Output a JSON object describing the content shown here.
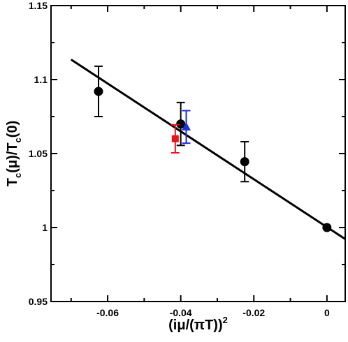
{
  "chart_data": {
    "type": "scatter",
    "xlabel": "(iμ/(πT))",
    "xlabel_sup": "2",
    "ylabel_parts": [
      "T",
      "c",
      "(μ)/T",
      "c",
      "(0)"
    ],
    "xlim": [
      -0.0755,
      0.005
    ],
    "ylim": [
      0.95,
      1.15
    ],
    "x_ticks": [
      -0.06,
      -0.04,
      -0.02,
      0
    ],
    "x_tick_labels": [
      "-0.06",
      "-0.04",
      "-0.02",
      "0"
    ],
    "y_ticks": [
      0.95,
      1.0,
      1.05,
      1.1,
      1.15
    ],
    "y_tick_labels": [
      "0.95",
      "1",
      "1.05",
      "1.1",
      "1.15"
    ],
    "grid": false,
    "series": [
      {
        "marker": "circle",
        "color": "#000000",
        "points": [
          {
            "x": -0.0625,
            "y": 1.092,
            "err": 0.017
          },
          {
            "x": -0.04,
            "y": 1.07,
            "err": 0.0145
          },
          {
            "x": -0.0225,
            "y": 1.0445,
            "err": 0.0135
          },
          {
            "x": 0.0,
            "y": 1.0,
            "err": 0
          }
        ]
      },
      {
        "marker": "square",
        "color": "#e8141c",
        "points": [
          {
            "x": -0.0415,
            "y": 1.06,
            "err": 0.0095
          }
        ]
      },
      {
        "marker": "triangle",
        "color": "#1f2ed6",
        "points": [
          {
            "x": -0.0385,
            "y": 1.068,
            "err": 0.011
          }
        ]
      }
    ],
    "fit_line": {
      "x": [
        -0.07,
        0.005
      ],
      "y": [
        1.1135,
        0.9922
      ],
      "color": "#000000"
    }
  }
}
